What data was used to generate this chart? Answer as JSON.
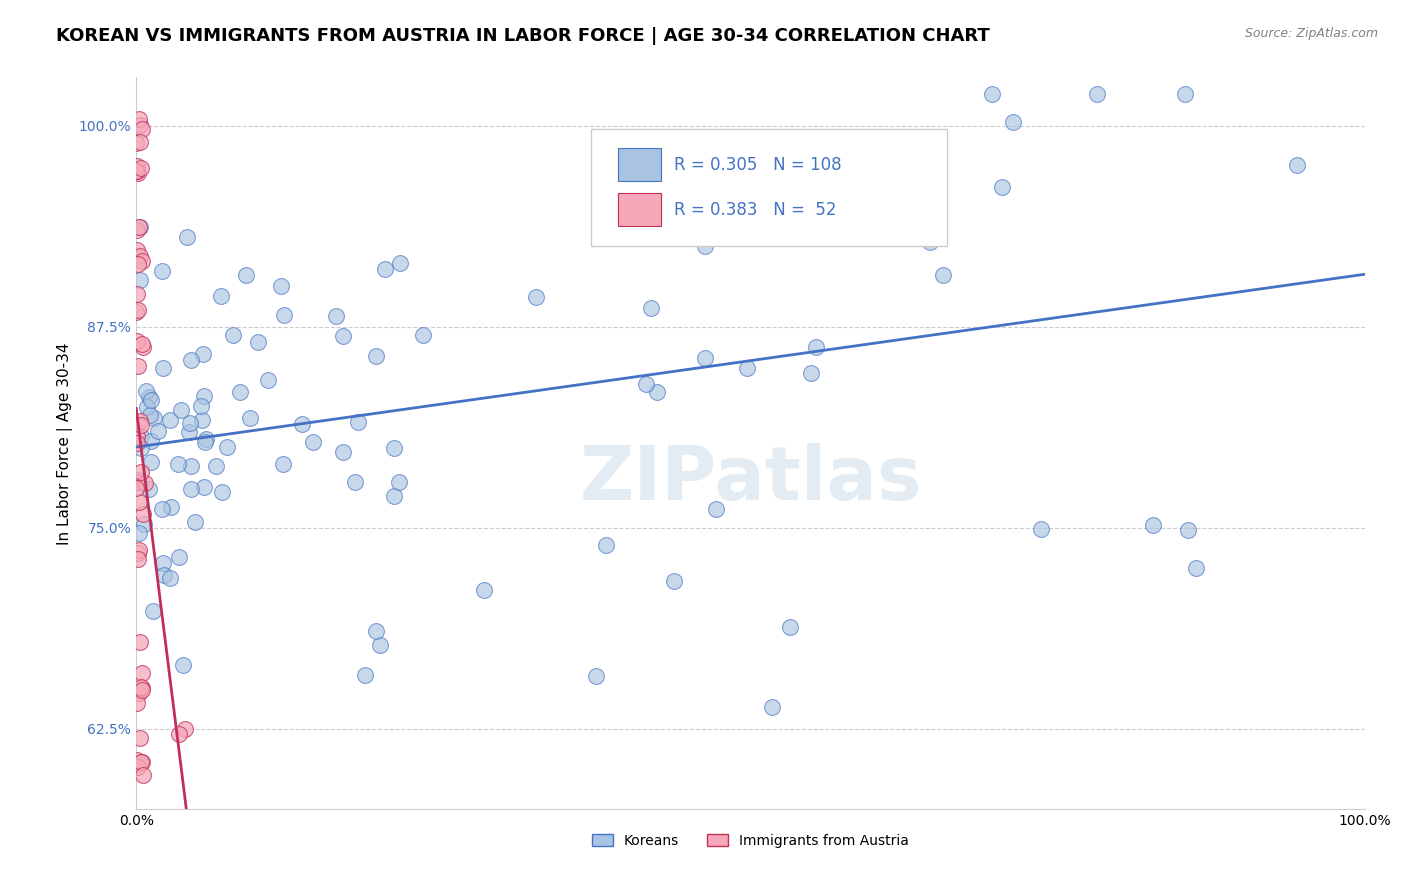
{
  "title": "KOREAN VS IMMIGRANTS FROM AUSTRIA IN LABOR FORCE | AGE 30-34 CORRELATION CHART",
  "source": "Source: ZipAtlas.com",
  "ylabel": "In Labor Force | Age 30-34",
  "xlim": [
    0.0,
    1.0
  ],
  "ylim": [
    0.575,
    1.03
  ],
  "yticks": [
    0.625,
    0.75,
    0.875,
    1.0
  ],
  "ytick_labels": [
    "62.5%",
    "75.0%",
    "87.5%",
    "100.0%"
  ],
  "xticks": [
    0.0,
    1.0
  ],
  "xtick_labels": [
    "0.0%",
    "100.0%"
  ],
  "legend_r_blue": "0.305",
  "legend_n_blue": "108",
  "legend_r_pink": "0.383",
  "legend_n_pink": "52",
  "blue_color": "#A8C4E0",
  "pink_color": "#F4A8BA",
  "trend_blue": "#4472C4",
  "trend_pink": "#C0305A",
  "title_fontsize": 13,
  "axis_label_fontsize": 11,
  "tick_fontsize": 10,
  "watermark": "ZIPatlas"
}
